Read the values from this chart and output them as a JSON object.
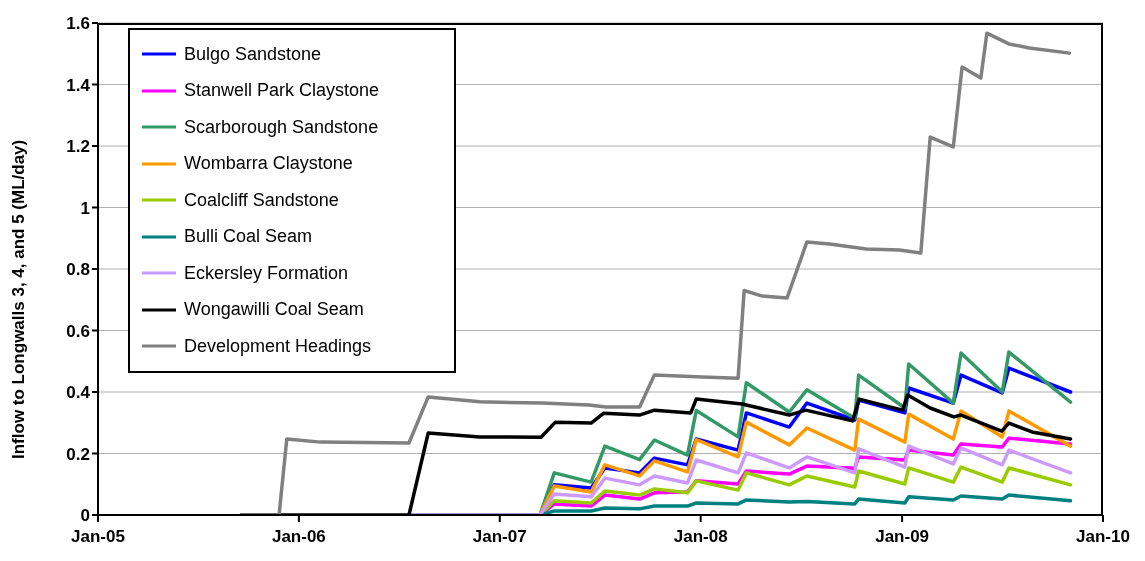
{
  "chart_data": {
    "type": "line",
    "ylabel": "Inflow to Longwalls 3, 4, and 5 (ML/day)",
    "xlim": [
      "2005-01",
      "2010-01"
    ],
    "xticks": [
      {
        "value": "2005-01",
        "label": "Jan-05"
      },
      {
        "value": "2006-01",
        "label": "Jan-06"
      },
      {
        "value": "2007-01",
        "label": "Jan-07"
      },
      {
        "value": "2008-01",
        "label": "Jan-08"
      },
      {
        "value": "2009-01",
        "label": "Jan-09"
      },
      {
        "value": "2010-01",
        "label": "Jan-10"
      }
    ],
    "ylim": [
      0,
      1.6
    ],
    "yticks": [
      0,
      0.2,
      0.4,
      0.6,
      0.8,
      1,
      1.2,
      1.4,
      1.6
    ],
    "grid": "y",
    "legend": "top left",
    "line_style": "solid",
    "x": [
      "2006-07-20",
      "2007-03-15",
      "2007-04-10",
      "2007-06-16",
      "2007-07-11",
      "2007-09-12",
      "2007-10-09",
      "2007-12-08",
      "2007-12-24",
      "2008-03-09",
      "2008-03-24",
      "2008-06-10",
      "2008-07-12",
      "2008-10-07",
      "2008-10-14",
      "2009-01-06",
      "2009-01-13",
      "2009-04-04",
      "2009-04-18",
      "2009-07-02",
      "2009-07-14",
      "2009-11-03"
    ],
    "series": [
      {
        "name": "Bulgo Sandstone",
        "color": "#0000ff",
        "values": [
          0,
          0,
          0.098,
          0.088,
          0.153,
          0.137,
          0.185,
          0.163,
          0.247,
          0.211,
          0.332,
          0.286,
          0.364,
          0.309,
          0.374,
          0.332,
          0.413,
          0.364,
          0.455,
          0.397,
          0.478,
          0.4
        ]
      },
      {
        "name": "Stanwell Park Claystone",
        "color": "#ff00ff",
        "values": [
          0,
          0,
          0.036,
          0.029,
          0.065,
          0.052,
          0.072,
          0.075,
          0.111,
          0.101,
          0.143,
          0.133,
          0.159,
          0.152,
          0.189,
          0.179,
          0.211,
          0.195,
          0.231,
          0.221,
          0.25,
          0.231
        ]
      },
      {
        "name": "Scarborough Sandstone",
        "color": "#339966",
        "values": [
          0,
          0,
          0.137,
          0.107,
          0.224,
          0.18,
          0.244,
          0.195,
          0.34,
          0.254,
          0.43,
          0.335,
          0.407,
          0.315,
          0.455,
          0.348,
          0.491,
          0.364,
          0.527,
          0.4,
          0.53,
          0.367
        ]
      },
      {
        "name": "Wombarra Claystone",
        "color": "#ff9900",
        "values": [
          0,
          0,
          0.094,
          0.075,
          0.163,
          0.127,
          0.176,
          0.14,
          0.245,
          0.189,
          0.302,
          0.228,
          0.283,
          0.211,
          0.312,
          0.237,
          0.328,
          0.247,
          0.338,
          0.254,
          0.338,
          0.224
        ]
      },
      {
        "name": "Coalcliff Sandstone",
        "color": "#99cc00",
        "values": [
          0,
          0,
          0.046,
          0.039,
          0.078,
          0.065,
          0.085,
          0.072,
          0.111,
          0.081,
          0.137,
          0.098,
          0.127,
          0.091,
          0.143,
          0.101,
          0.153,
          0.107,
          0.156,
          0.107,
          0.153,
          0.098
        ]
      },
      {
        "name": "Bulli Coal Seam",
        "color": "#008080",
        "values": [
          0,
          0,
          0.013,
          0.013,
          0.023,
          0.02,
          0.029,
          0.029,
          0.039,
          0.036,
          0.049,
          0.042,
          0.044,
          0.036,
          0.052,
          0.039,
          0.059,
          0.049,
          0.062,
          0.052,
          0.065,
          0.046
        ]
      },
      {
        "name": "Eckersley Formation",
        "color": "#cc99ff",
        "values": [
          0,
          0,
          0.068,
          0.059,
          0.12,
          0.098,
          0.127,
          0.104,
          0.179,
          0.137,
          0.202,
          0.153,
          0.189,
          0.137,
          0.215,
          0.156,
          0.224,
          0.166,
          0.218,
          0.163,
          0.211,
          0.137
        ]
      },
      {
        "name": "Wongawilli Coal Seam",
        "color": "#000000",
        "x": [
          "2005-09-18",
          "2006-07-20",
          "2006-08-24",
          "2006-11-26",
          "2007-03-17",
          "2007-04-12",
          "2007-06-16",
          "2007-07-09",
          "2007-09-12",
          "2007-10-09",
          "2007-12-14",
          "2007-12-24",
          "2008-03-16",
          "2008-06-10",
          "2008-07-10",
          "2008-10-03",
          "2008-10-15",
          "2009-01-02",
          "2009-01-11",
          "2009-02-21",
          "2009-04-05",
          "2009-04-18",
          "2009-07-01",
          "2009-07-14",
          "2009-08-25",
          "2009-11-03"
        ],
        "values": [
          0,
          0,
          0.267,
          0.254,
          0.253,
          0.302,
          0.299,
          0.331,
          0.325,
          0.341,
          0.332,
          0.377,
          0.361,
          0.325,
          0.341,
          0.306,
          0.377,
          0.341,
          0.39,
          0.348,
          0.319,
          0.325,
          0.273,
          0.299,
          0.27,
          0.247
        ]
      },
      {
        "name": "Development Headings",
        "color": "#808080",
        "x": [
          "2005-09-18",
          "2005-11-26",
          "2005-12-10",
          "2006-02-09",
          "2006-07-20",
          "2006-08-24",
          "2006-11-26",
          "2007-03-18",
          "2007-06-12",
          "2007-07-13",
          "2007-09-12",
          "2007-10-09",
          "2008-01-04",
          "2008-03-09",
          "2008-03-20",
          "2008-04-22",
          "2008-06-06",
          "2008-07-12",
          "2008-08-22",
          "2008-10-28",
          "2008-12-27",
          "2009-02-04",
          "2009-02-21",
          "2009-04-04",
          "2009-04-20",
          "2009-05-24",
          "2009-06-04",
          "2009-07-14",
          "2009-08-20",
          "2009-11-01"
        ],
        "values": [
          0,
          0,
          0.247,
          0.237,
          0.234,
          0.384,
          0.368,
          0.364,
          0.358,
          0.351,
          0.351,
          0.455,
          0.449,
          0.445,
          0.73,
          0.712,
          0.706,
          0.888,
          0.881,
          0.865,
          0.862,
          0.852,
          1.229,
          1.197,
          1.457,
          1.421,
          1.567,
          1.532,
          1.519,
          1.502
        ]
      }
    ]
  }
}
